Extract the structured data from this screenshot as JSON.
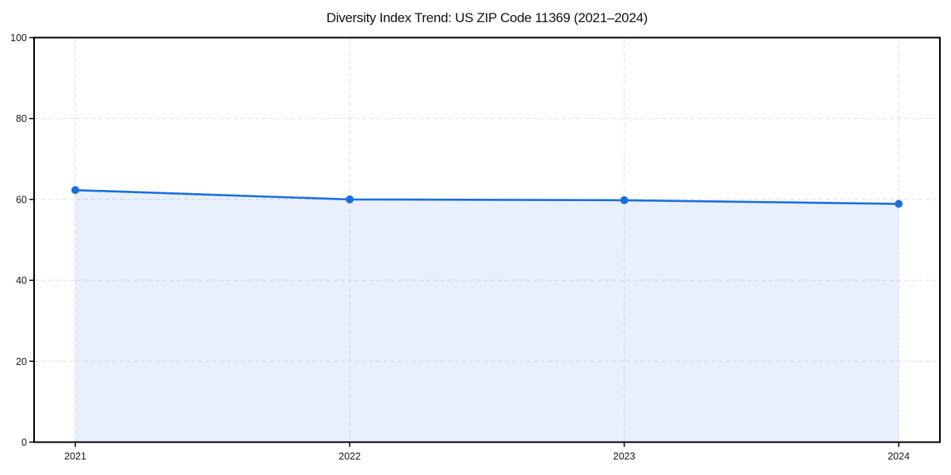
{
  "chart_data": {
    "type": "area",
    "title": "Diversity Index Trend: US ZIP Code 11369 (2021–2024)",
    "x": [
      "2021",
      "2022",
      "2023",
      "2024"
    ],
    "values": [
      62.3,
      60.0,
      59.8,
      58.9
    ],
    "series_name": "Diversity Index",
    "xlabel": "",
    "ylabel": "",
    "ylim": [
      0,
      100
    ],
    "yticks": [
      0,
      20,
      40,
      60,
      80,
      100
    ],
    "grid": true,
    "legend": "none",
    "line_color": "#1a6fe0",
    "marker_color": "#1a6fe0",
    "area_color": "#1a6fe0",
    "area_opacity": 0.1,
    "grid_color": "#dcdcdc",
    "axis_color": "#000000",
    "tick_label_color": "#161616"
  }
}
